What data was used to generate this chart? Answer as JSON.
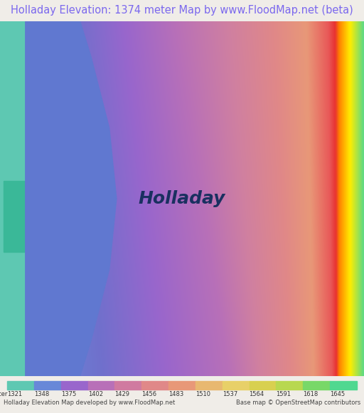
{
  "title": "Holladay Elevation: 1374 meter Map by www.FloodMap.net (beta)",
  "title_color": "#7b68ee",
  "title_fontsize": 10.5,
  "background_color": "#f0ede8",
  "colorbar_values": [
    1321,
    1348,
    1375,
    1402,
    1429,
    1456,
    1483,
    1510,
    1537,
    1564,
    1591,
    1618,
    1645
  ],
  "colorbar_colors": [
    "#5ec8b2",
    "#6888d8",
    "#9966cc",
    "#b870b8",
    "#d07aa0",
    "#e08888",
    "#e89878",
    "#e8b870",
    "#e8d068",
    "#d8d050",
    "#b8d850",
    "#78d868",
    "#50d890"
  ],
  "footer_left": "Holladay Elevation Map developed by www.FloodMap.net",
  "footer_right": "Base map © OpenStreetMap contributors",
  "footer_fontsize": 6.0,
  "map_label": "Holladay",
  "map_label_fontsize": 18,
  "map_label_color": "#1a3060",
  "colorbar_label": "meter"
}
